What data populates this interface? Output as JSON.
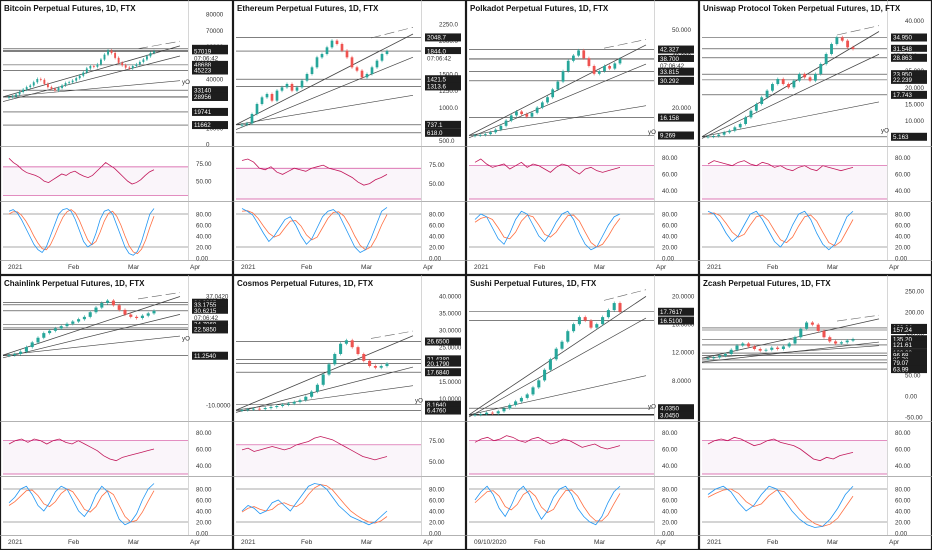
{
  "layout": {
    "grid": "2x4"
  },
  "chart_data": [
    {
      "type": "candlestick",
      "title": "Bitcoin Perpetual Futures, 1D, FTX",
      "x_ticks": [
        "2021",
        "Feb",
        "Mar",
        "Apr"
      ],
      "price_ticks": [
        "80000",
        "70000",
        "60000",
        "50000",
        "40000",
        "30000",
        "20000",
        "10000",
        "0"
      ],
      "price_range": [
        0,
        80000
      ],
      "price_labels": [
        "58577",
        "57553",
        "57019",
        "07:06:42",
        "48688",
        "45223",
        "yO",
        "33140",
        "28957",
        "28956",
        "19741",
        "11662"
      ],
      "price_label_values": [
        58577,
        57553,
        57019,
        57019,
        48688,
        45223,
        38500,
        33140,
        28957,
        28956,
        19741,
        11662
      ],
      "price_path": [
        29000,
        29200,
        30500,
        32000,
        33500,
        35000,
        36000,
        38000,
        40000,
        39500,
        37000,
        35000,
        34000,
        33000,
        34500,
        36000,
        37500,
        38000,
        39000,
        40500,
        42000,
        44000,
        46500,
        48000,
        47500,
        49000,
        52000,
        55000,
        57500,
        56000,
        53000,
        50000,
        48500,
        47000,
        46500,
        48000,
        49000,
        50500,
        52000,
        54000,
        56000,
        57019
      ],
      "rsi_ticks": [
        "75.00",
        "50.00"
      ],
      "rsi_range": [
        25,
        95
      ],
      "rsi_guides": [
        70,
        30
      ],
      "rsi_path": [
        82,
        76,
        72,
        66,
        62,
        60,
        58,
        55,
        50,
        48,
        52,
        56,
        60,
        58,
        62,
        64,
        60,
        57,
        55,
        58,
        64,
        70,
        76,
        72,
        68,
        62,
        56,
        50,
        46,
        48,
        52,
        58,
        63,
        66
      ],
      "stoch_ticks": [
        "80.00",
        "60.00",
        "40.00",
        "20.00",
        "0.00"
      ],
      "stoch_k": [
        85,
        88,
        82,
        70,
        55,
        40,
        25,
        15,
        10,
        20,
        40,
        60,
        80,
        88,
        90,
        85,
        70,
        50,
        30,
        20,
        25,
        45,
        70,
        85,
        88,
        80,
        60,
        40,
        20,
        8,
        5,
        12,
        30,
        55,
        80,
        90
      ],
      "stoch_d": [
        80,
        84,
        84,
        78,
        68,
        55,
        40,
        27,
        17,
        15,
        24,
        40,
        58,
        74,
        84,
        88,
        82,
        68,
        50,
        33,
        24,
        30,
        47,
        67,
        81,
        85,
        76,
        60,
        40,
        22,
        11,
        8,
        16,
        33,
        56,
        76
      ]
    },
    {
      "type": "candlestick",
      "title": "Ethereum Perpetual Futures, 1D, FTX",
      "x_ticks": [
        "2021",
        "Feb",
        "Mar",
        "Apr"
      ],
      "price_ticks": [
        "2250.0",
        "2000.0",
        "1750.0",
        "1500.0",
        "1250.0",
        "1000.0",
        "750.0",
        "500.0"
      ],
      "price_range": [
        450,
        2400
      ],
      "price_labels": [
        "2048.7",
        "1844.0",
        "07:06:42",
        "1421.5",
        "1313.6",
        "737.1",
        "618.0"
      ],
      "price_label_values": [
        2048.7,
        1844.0,
        1844.0,
        1421.5,
        1313.6,
        737.1,
        618.0
      ],
      "price_path": [
        740,
        760,
        900,
        1050,
        1150,
        1200,
        1100,
        1250,
        1300,
        1350,
        1250,
        1300,
        1400,
        1500,
        1600,
        1750,
        1800,
        1900,
        2000,
        1950,
        1850,
        1750,
        1600,
        1550,
        1450,
        1500,
        1600,
        1700,
        1800,
        1844
      ],
      "rsi_ticks": [
        "75.00",
        "50.00"
      ],
      "rsi_range": [
        30,
        95
      ],
      "rsi_guides": [
        70,
        30
      ],
      "rsi_path": [
        80,
        82,
        78,
        70,
        68,
        72,
        65,
        62,
        66,
        70,
        68,
        66,
        70,
        72,
        74,
        70,
        68,
        66,
        62,
        58,
        52,
        48,
        50,
        55,
        58,
        62
      ],
      "stoch_ticks": [
        "80.00",
        "60.00",
        "40.00",
        "20.00",
        "0.00"
      ],
      "stoch_k": [
        90,
        85,
        78,
        62,
        45,
        30,
        40,
        55,
        70,
        75,
        60,
        40,
        25,
        35,
        55,
        75,
        85,
        88,
        80,
        60,
        40,
        20,
        10,
        15,
        35,
        60,
        85,
        92
      ],
      "stoch_d": [
        85,
        86,
        82,
        72,
        58,
        45,
        38,
        42,
        55,
        67,
        68,
        58,
        42,
        33,
        38,
        55,
        72,
        83,
        84,
        76,
        60,
        40,
        23,
        15,
        20,
        37,
        60,
        79
      ]
    },
    {
      "type": "candlestick",
      "title": "Polkadot Perpetual Futures, 1D, FTX",
      "x_ticks": [
        "2021",
        "Feb",
        "Mar",
        "Apr"
      ],
      "price_ticks": [
        "50.000",
        "40.000",
        "30.000",
        "20.000",
        "10.000"
      ],
      "price_range": [
        6,
        56
      ],
      "price_labels": [
        "42.327",
        "38.722",
        "38.700",
        "07:06:42",
        "33.815",
        "30.292",
        "16.158",
        "yO",
        "9.269"
      ],
      "price_label_values": [
        42.327,
        38.722,
        38.7,
        38.7,
        33.815,
        30.292,
        16.158,
        10.8,
        9.269
      ],
      "price_path": [
        9.3,
        9.5,
        9.8,
        10.5,
        11.5,
        13,
        15,
        17,
        18.5,
        17.5,
        16.5,
        18,
        20,
        22,
        24,
        27,
        30,
        34,
        38,
        40,
        42,
        39,
        36,
        33,
        34,
        36,
        35,
        37,
        38.7
      ],
      "rsi_ticks": [
        "80.00",
        "60.00",
        "40.00"
      ],
      "rsi_range": [
        30,
        90
      ],
      "rsi_guides": [
        70,
        30
      ],
      "rsi_path": [
        74,
        78,
        72,
        68,
        70,
        72,
        66,
        70,
        74,
        68,
        72,
        70,
        66,
        62,
        68,
        72,
        70,
        64,
        60,
        66,
        68,
        64,
        62,
        64,
        66,
        68
      ],
      "stoch_ticks": [
        "80.00",
        "60.00",
        "40.00",
        "20.00",
        "0.00"
      ],
      "stoch_k": [
        70,
        80,
        75,
        55,
        35,
        25,
        45,
        70,
        85,
        80,
        60,
        40,
        30,
        45,
        65,
        80,
        85,
        70,
        45,
        25,
        15,
        20,
        40,
        60,
        75,
        80
      ],
      "stoch_d": [
        65,
        72,
        75,
        70,
        55,
        38,
        35,
        47,
        67,
        78,
        75,
        60,
        43,
        38,
        47,
        63,
        77,
        78,
        67,
        47,
        28,
        20,
        25,
        40,
        58,
        72
      ]
    },
    {
      "type": "candlestick",
      "title": "Uniswap Protocol Token Perpetual Futures, 1D, FTX",
      "x_ticks": [
        "2021",
        "Feb",
        "Mar",
        "Apr"
      ],
      "price_ticks": [
        "40.000",
        "35.000",
        "30.000",
        "25.000",
        "20.000",
        "15.000",
        "10.000",
        "5.000"
      ],
      "price_range": [
        3,
        42
      ],
      "price_labels": [
        "34.950",
        "31.548",
        "07:06:42",
        "28.863",
        "23.950",
        "22.239",
        "17.743",
        "yO",
        "5.163"
      ],
      "price_label_values": [
        34.95,
        31.548,
        31.548,
        28.863,
        23.95,
        22.239,
        17.743,
        7.2,
        5.163
      ],
      "price_path": [
        5.2,
        5.4,
        5.8,
        6.5,
        7,
        8,
        9,
        11,
        13,
        15,
        17,
        19,
        21,
        22.5,
        21,
        20,
        22,
        24,
        23,
        22,
        24,
        27,
        30,
        33,
        35,
        34,
        32,
        31.5
      ],
      "rsi_ticks": [
        "80.00",
        "60.00",
        "40.00"
      ],
      "rsi_range": [
        30,
        90
      ],
      "rsi_guides": [
        70,
        30
      ],
      "rsi_path": [
        72,
        76,
        74,
        72,
        70,
        74,
        76,
        72,
        70,
        74,
        72,
        68,
        70,
        66,
        64,
        68,
        70,
        66,
        64,
        70,
        68,
        66,
        64,
        66,
        68
      ],
      "stoch_ticks": [
        "80.00",
        "60.00",
        "40.00",
        "20.00",
        "0.00"
      ],
      "stoch_k": [
        85,
        80,
        65,
        45,
        30,
        40,
        60,
        80,
        85,
        70,
        50,
        30,
        20,
        35,
        60,
        80,
        85,
        70,
        45,
        25,
        15,
        25,
        50,
        75,
        85
      ],
      "stoch_d": [
        80,
        82,
        77,
        63,
        47,
        38,
        43,
        60,
        75,
        78,
        68,
        50,
        33,
        28,
        38,
        58,
        75,
        78,
        67,
        47,
        28,
        22,
        30,
        50,
        70
      ]
    },
    {
      "type": "candlestick",
      "title": "Chainlink Perpetual Futures, 1D, FTX",
      "x_ticks": [
        "2021",
        "Feb",
        "Mar",
        "Apr"
      ],
      "price_ticks": [
        "37.0420",
        "24.7060",
        "-10.0000"
      ],
      "price_range": [
        -16,
        40
      ],
      "price_labels": [
        "34.0885",
        "33.1755",
        "30.6215",
        "07:06:42",
        "24.7060",
        "23.2330",
        "22.5850",
        "yO",
        "11.2540"
      ],
      "price_label_values": [
        34.0885,
        33.1755,
        30.6215,
        30.6215,
        24.706,
        23.233,
        22.585,
        19,
        11.254
      ],
      "price_path": [
        11.5,
        12,
        13,
        15,
        17,
        19,
        21,
        22,
        23,
        24,
        25,
        26,
        27,
        28,
        30,
        32,
        34,
        35,
        33,
        31,
        29,
        28,
        27.5,
        28.5,
        29.5,
        30.6
      ],
      "rsi_ticks": [
        "80.00",
        "60.00",
        "40.00"
      ],
      "rsi_range": [
        30,
        90
      ],
      "rsi_guides": [
        70,
        30
      ],
      "rsi_path": [
        66,
        70,
        72,
        68,
        72,
        70,
        66,
        70,
        72,
        68,
        66,
        70,
        66,
        62,
        58,
        52,
        48,
        46,
        50,
        52,
        54,
        56,
        58,
        60
      ],
      "stoch_ticks": [
        "80.00",
        "60.00",
        "40.00",
        "20.00",
        "0.00"
      ],
      "stoch_k": [
        55,
        65,
        80,
        85,
        70,
        50,
        40,
        55,
        75,
        85,
        80,
        60,
        40,
        30,
        45,
        70,
        85,
        75,
        50,
        25,
        15,
        20,
        35,
        60,
        80,
        90
      ],
      "stoch_d": [
        50,
        57,
        67,
        77,
        78,
        68,
        53,
        48,
        57,
        72,
        80,
        75,
        60,
        43,
        38,
        48,
        67,
        77,
        70,
        50,
        30,
        20,
        23,
        38,
        58,
        77
      ]
    },
    {
      "type": "candlestick",
      "title": "Cosmos Perpetual Futures, 1D, FTX",
      "x_ticks": [
        "2021",
        "Feb",
        "Mar",
        "Apr"
      ],
      "price_ticks": [
        "40.0000",
        "35.0000",
        "30.0000",
        "25.0000",
        "20.0000",
        "15.0000",
        "10.0000"
      ],
      "price_range": [
        4,
        42
      ],
      "price_labels": [
        "26.6500",
        "21.4380",
        "20.1790",
        "07:06:42",
        "17.6840",
        "yO",
        "8.1640",
        "6.4760"
      ],
      "price_label_values": [
        26.65,
        21.438,
        20.179,
        20.179,
        17.684,
        9.5,
        8.164,
        6.476
      ],
      "price_path": [
        6.6,
        6.8,
        7,
        6.9,
        7.2,
        7.5,
        7.8,
        8.2,
        8.5,
        9,
        9.5,
        10.5,
        12,
        14,
        17,
        20,
        23,
        26,
        27,
        25,
        23,
        21,
        19.5,
        19,
        19.5,
        20.2
      ],
      "rsi_ticks": [
        "75.00",
        "50.00"
      ],
      "rsi_range": [
        35,
        95
      ],
      "rsi_guides": [
        70,
        30
      ],
      "rsi_path": [
        64,
        66,
        62,
        64,
        66,
        68,
        66,
        64,
        66,
        70,
        72,
        74,
        78,
        80,
        78,
        76,
        72,
        68,
        64,
        60,
        56,
        54,
        52,
        54,
        56
      ],
      "stoch_ticks": [
        "80.00",
        "60.00",
        "40.00",
        "20.00",
        "0.00"
      ],
      "stoch_k": [
        40,
        50,
        45,
        35,
        40,
        55,
        60,
        50,
        40,
        55,
        70,
        85,
        90,
        88,
        80,
        65,
        50,
        40,
        30,
        25,
        20,
        15,
        20,
        30,
        40
      ],
      "stoch_d": [
        38,
        45,
        48,
        43,
        40,
        43,
        52,
        55,
        50,
        48,
        55,
        70,
        82,
        88,
        86,
        78,
        65,
        52,
        40,
        32,
        25,
        20,
        18,
        22,
        30
      ]
    },
    {
      "type": "candlestick",
      "title": "Sushi Perpetual Futures, 1D, FTX",
      "x_ticks": [
        "09/10/2020",
        "Feb",
        "Mar",
        "Apr"
      ],
      "price_ticks": [
        "20.0000",
        "16.0000",
        "12.0000",
        "8.0000",
        "4.0000"
      ],
      "price_range": [
        2.5,
        21
      ],
      "price_labels": [
        "17.7617",
        "16.5100",
        "yO",
        "4.0350",
        "3.1700",
        "3.1000",
        "3.0450"
      ],
      "price_label_values": [
        17.7617,
        16.51,
        4.35,
        4.035,
        3.17,
        3.1,
        3.045
      ],
      "price_path": [
        3.1,
        3.2,
        3.4,
        3.3,
        3.6,
        4,
        4.5,
        5,
        5.5,
        6,
        7,
        8,
        9.5,
        11,
        12.5,
        13.5,
        15,
        16,
        17,
        16.5,
        15.5,
        16,
        17,
        18,
        19,
        17.76
      ],
      "rsi_ticks": [
        "80.00",
        "60.00",
        "40.00"
      ],
      "rsi_range": [
        30,
        90
      ],
      "rsi_guides": [
        70,
        30
      ],
      "rsi_path": [
        68,
        72,
        74,
        70,
        72,
        76,
        74,
        70,
        68,
        72,
        74,
        70,
        66,
        68,
        72,
        70,
        66,
        62,
        64,
        66,
        62,
        60,
        62,
        64
      ],
      "stoch_ticks": [
        "80.00",
        "60.00",
        "40.00",
        "20.00",
        "0.00"
      ],
      "stoch_k": [
        60,
        75,
        85,
        70,
        45,
        30,
        50,
        75,
        85,
        70,
        45,
        25,
        40,
        65,
        80,
        85,
        70,
        45,
        30,
        20,
        15,
        30,
        55,
        75,
        85
      ],
      "stoch_d": [
        55,
        65,
        75,
        77,
        67,
        48,
        42,
        52,
        70,
        77,
        67,
        47,
        37,
        43,
        62,
        77,
        78,
        67,
        48,
        32,
        22,
        22,
        33,
        53,
        72
      ]
    },
    {
      "type": "candlestick",
      "title": "Zcash Perpetual Futures, 1D, FTX",
      "x_ticks": [
        "2021",
        "Feb",
        "Mar",
        "Apr"
      ],
      "price_ticks": [
        "250.00",
        "200.00",
        "150.00",
        "100.00",
        "50.00",
        "0.00",
        "-50.00"
      ],
      "price_range": [
        -55,
        255
      ],
      "price_labels": [
        "162.24",
        "157.24",
        "135.20",
        "07:06:42",
        "121.61",
        "102.33",
        "96.68",
        "85.73",
        "79.07",
        "63.99"
      ],
      "price_label_values": [
        162.24,
        157.24,
        135.2,
        135.2,
        121.61,
        102.33,
        96.68,
        85.73,
        79.07,
        63.99
      ],
      "price_path": [
        90,
        92,
        96,
        100,
        110,
        120,
        125,
        118,
        112,
        108,
        110,
        115,
        112,
        118,
        125,
        140,
        160,
        175,
        170,
        155,
        140,
        130,
        125,
        128,
        132,
        135.2
      ],
      "rsi_ticks": [
        "80.00",
        "60.00",
        "40.00"
      ],
      "rsi_range": [
        30,
        90
      ],
      "rsi_guides": [
        70,
        30
      ],
      "rsi_path": [
        66,
        70,
        72,
        70,
        74,
        72,
        68,
        64,
        66,
        70,
        72,
        68,
        66,
        64,
        60,
        54,
        48,
        46,
        50,
        48,
        52,
        54,
        56
      ],
      "stoch_ticks": [
        "80.00",
        "60.00",
        "40.00",
        "20.00",
        "0.00"
      ],
      "stoch_k": [
        70,
        80,
        85,
        75,
        55,
        40,
        50,
        70,
        85,
        80,
        60,
        40,
        25,
        15,
        10,
        12,
        25,
        45,
        70,
        85
      ],
      "stoch_d": [
        65,
        72,
        78,
        80,
        72,
        57,
        48,
        53,
        68,
        78,
        75,
        60,
        42,
        27,
        17,
        12,
        16,
        27,
        47,
        67
      ]
    }
  ]
}
